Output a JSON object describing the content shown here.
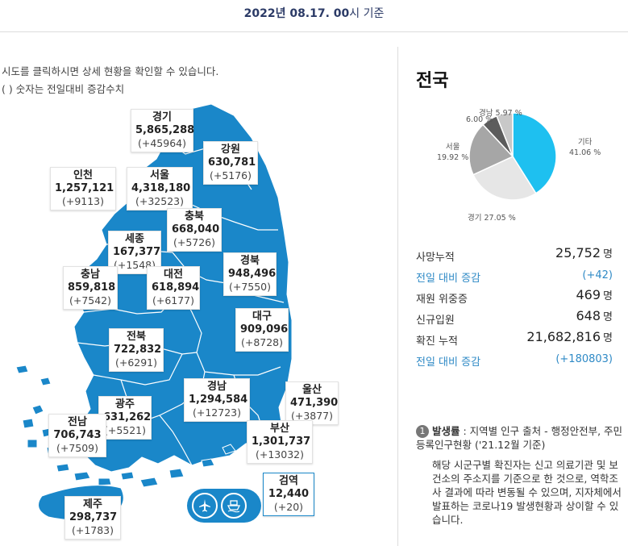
{
  "header": {
    "date_bold": "2022년 08.17. 00",
    "date_suffix": "시 기준"
  },
  "notes": {
    "line1": "시도를 클릭하시면 상세 현황을 확인할 수 있습니다.",
    "line2": "( ) 숫자는 전일대비 증감수치"
  },
  "regions": [
    {
      "key": "gyeonggi",
      "name": "경기",
      "value": "5,865,288",
      "delta": "(+45964)"
    },
    {
      "key": "gangwon",
      "name": "강원",
      "value": "630,781",
      "delta": "(+5176)"
    },
    {
      "key": "incheon",
      "name": "인천",
      "value": "1,257,121",
      "delta": "(+9113)"
    },
    {
      "key": "seoul",
      "name": "서울",
      "value": "4,318,180",
      "delta": "(+32523)"
    },
    {
      "key": "chungbuk",
      "name": "충북",
      "value": "668,040",
      "delta": "(+5726)"
    },
    {
      "key": "sejong",
      "name": "세종",
      "value": "167,377",
      "delta": "(+1548)"
    },
    {
      "key": "gyeongbuk",
      "name": "경북",
      "value": "948,496",
      "delta": "(+7550)"
    },
    {
      "key": "chungnam",
      "name": "충남",
      "value": "859,818",
      "delta": "(+7542)"
    },
    {
      "key": "daejeon",
      "name": "대전",
      "value": "618,894",
      "delta": "(+6177)"
    },
    {
      "key": "daegu",
      "name": "대구",
      "value": "909,096",
      "delta": "(+8728)"
    },
    {
      "key": "jeonbuk",
      "name": "전북",
      "value": "722,832",
      "delta": "(+6291)"
    },
    {
      "key": "gyeongnam",
      "name": "경남",
      "value": "1,294,584",
      "delta": "(+12723)"
    },
    {
      "key": "ulsan",
      "name": "울산",
      "value": "471,390",
      "delta": "(+3877)"
    },
    {
      "key": "gwangju",
      "name": "광주",
      "value": "631,262",
      "delta": "(+5521)"
    },
    {
      "key": "jeonnam",
      "name": "전남",
      "value": "706,743",
      "delta": "(+7509)"
    },
    {
      "key": "busan",
      "name": "부산",
      "value": "1,301,737",
      "delta": "(+13032)"
    },
    {
      "key": "quarantine",
      "name": "검역",
      "value": "12,440",
      "delta": "(+20)"
    },
    {
      "key": "jeju",
      "name": "제주",
      "value": "298,737",
      "delta": "(+1783)"
    }
  ],
  "map_colors": {
    "fill": "#1a87c9",
    "border": "#ffffff"
  },
  "icons": {
    "airplane": "airplane-icon",
    "ship": "ship-icon"
  },
  "summary": {
    "title": "전국",
    "pie": {
      "colors": [
        "#1ec0f0",
        "#e6e6e6",
        "#a6a6a6",
        "#5c5c5c",
        "#c8c8c8"
      ],
      "slices": [
        {
          "name": "기타",
          "percent": 41.06,
          "pct_label": "41.06 %"
        },
        {
          "name": "경기",
          "percent": 27.05,
          "pct_label": "27.05 %"
        },
        {
          "name": "서울",
          "percent": 19.92,
          "pct_label": "19.92 %"
        },
        {
          "name": "경남",
          "percent": 5.97,
          "pct_label": "5.97 %"
        },
        {
          "name": "",
          "percent": 6.0,
          "pct_label": "6.00 %"
        }
      ]
    },
    "stats": [
      {
        "label": "사망누적",
        "value": "25,752",
        "unit": "명"
      },
      {
        "label": "전일 대비 증감",
        "value": "(+42)",
        "unit": "",
        "delta": true
      },
      {
        "label": "재원 위중증",
        "value": "469",
        "unit": "명"
      },
      {
        "label": "신규입원",
        "value": "648",
        "unit": "명"
      },
      {
        "label": "확진 누적",
        "value": "21,682,816",
        "unit": "명"
      },
      {
        "label": "전일 대비 증감",
        "value": "(+180803)",
        "unit": "",
        "delta": true
      }
    ],
    "footnote": {
      "number": "1",
      "heading": "발생률",
      "text": " : 지역별 인구 출처 - 행정안전부, 주민등록인구현황 ('21.12월 기준)",
      "body": "해당 시군구별 확진자는 신고 의료기관 및 보건소의 주소지를 기준으로 한 것으로, 역학조사 결과에 따라 변동될 수 있으며, 지자체에서 발표하는 코로나19 발생현황과 상이할 수 있습니다."
    }
  }
}
